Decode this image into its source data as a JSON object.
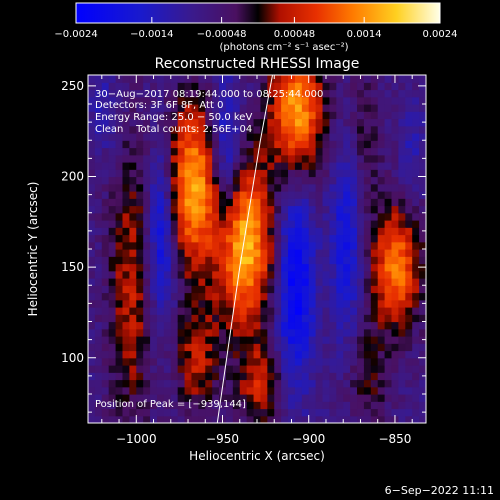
{
  "chart_data": {
    "type": "heatmap",
    "title": "Reconstructed RHESSI Image",
    "xlabel": "Heliocentric X (arcsec)",
    "ylabel": "Heliocentric Y (arcsec)",
    "xlim": [
      -1028,
      -832
    ],
    "ylim": [
      64,
      256
    ],
    "x_ticks": [
      {
        "value": -1000,
        "label": "−1000"
      },
      {
        "value": -950,
        "label": "−950"
      },
      {
        "value": -900,
        "label": "−900"
      },
      {
        "value": -850,
        "label": "−850"
      }
    ],
    "y_ticks": [
      {
        "value": 100,
        "label": "100"
      },
      {
        "value": 150,
        "label": "150"
      },
      {
        "value": 200,
        "label": "200"
      },
      {
        "value": 250,
        "label": "250"
      }
    ],
    "colorbar": {
      "ticks": [
        {
          "value": -0.0024,
          "label": "−0.0024"
        },
        {
          "value": -0.0014,
          "label": "−0.0014"
        },
        {
          "value": -0.00048,
          "label": "−0.00048"
        },
        {
          "value": 0.00048,
          "label": "0.00048"
        },
        {
          "value": 0.0014,
          "label": "0.0014"
        },
        {
          "value": 0.0024,
          "label": "0.0024"
        }
      ],
      "units": "(photons cm⁻² s⁻¹ asec⁻²)",
      "range": [
        -0.0024,
        0.0024
      ]
    },
    "info_lines": [
      "30−Aug−2017 08:19:44.000 to 08:25:44.000",
      "Detectors: 3F 6F 8F, Att 0",
      "Energy Range: 25.0 − 50.0 keV",
      "Clean    Total counts: 2.56E+04"
    ],
    "peak_label": "Position of Peak = [−939,144]",
    "sources": [
      {
        "x": -968,
        "y": 195,
        "sx": 11,
        "sy": 32,
        "amp": 0.0022
      },
      {
        "x": -937,
        "y": 162,
        "sx": 12,
        "sy": 32,
        "amp": 0.0024
      },
      {
        "x": -907,
        "y": 236,
        "sx": 11,
        "sy": 24,
        "amp": 0.0022
      },
      {
        "x": -849,
        "y": 150,
        "sx": 10,
        "sy": 24,
        "amp": 0.0019
      },
      {
        "x": -1003,
        "y": 140,
        "sx": 9,
        "sy": 55,
        "amp": 0.0011
      },
      {
        "x": -965,
        "y": 100,
        "sx": 9,
        "sy": 22,
        "amp": 0.0011
      },
      {
        "x": -928,
        "y": 85,
        "sx": 9,
        "sy": 16,
        "amp": 0.0012
      },
      {
        "x": -866,
        "y": 90,
        "sx": 8,
        "sy": 22,
        "amp": 0.0007
      },
      {
        "x": -870,
        "y": 220,
        "sx": 8,
        "sy": 30,
        "amp": 0.0006
      },
      {
        "x": -985,
        "y": 170,
        "sx": 6,
        "sy": 35,
        "amp": -0.0015
      },
      {
        "x": -948,
        "y": 210,
        "sx": 6,
        "sy": 30,
        "amp": -0.0013
      },
      {
        "x": -908,
        "y": 140,
        "sx": 8,
        "sy": 38,
        "amp": -0.0016
      },
      {
        "x": -878,
        "y": 170,
        "sx": 6,
        "sy": 40,
        "amp": -0.0012
      },
      {
        "x": -1018,
        "y": 235,
        "sx": 6,
        "sy": 15,
        "amp": -0.0006
      },
      {
        "x": -840,
        "y": 210,
        "sx": 5,
        "sy": 20,
        "amp": -0.0005
      }
    ],
    "limb_points": [
      [
        -953,
        64
      ],
      [
        -940,
        150
      ],
      [
        -928,
        220
      ],
      [
        -921,
        256
      ]
    ]
  },
  "footer": {
    "date": "6−Sep−2022 11:11"
  }
}
